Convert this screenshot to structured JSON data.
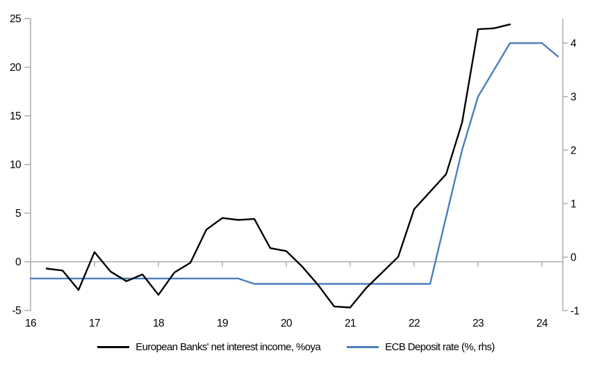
{
  "chart_data": {
    "type": "line",
    "title": "",
    "x_axis": {
      "ticks": [
        16,
        17,
        18,
        19,
        20,
        21,
        22,
        23,
        24
      ],
      "range": [
        16,
        24.33
      ],
      "tick_label_position": "bottom",
      "tick_marks_on_zero_line": true
    },
    "y_axis_left": {
      "ticks": [
        25,
        20,
        15,
        10,
        5,
        0,
        -5
      ],
      "range": [
        -5,
        25
      ]
    },
    "y_axis_right": {
      "ticks": [
        4,
        3,
        2,
        1,
        0,
        -1
      ],
      "range": [
        -1,
        4.45
      ]
    },
    "grid": false,
    "zero_line": true,
    "legend_position": "bottom",
    "axis_color": "#a6a6a6",
    "series": [
      {
        "name": "European Banks' net interest income, %oya",
        "color": "#000000",
        "axis": "left",
        "x": [
          16.25,
          16.5,
          16.75,
          17.0,
          17.25,
          17.5,
          17.75,
          18.0,
          18.25,
          18.5,
          18.75,
          19.0,
          19.25,
          19.5,
          19.75,
          20.0,
          20.25,
          20.5,
          20.75,
          21.0,
          21.25,
          21.5,
          21.75,
          22.0,
          22.25,
          22.5,
          22.75,
          23.0,
          23.25,
          23.5
        ],
        "values": [
          -0.7,
          -0.9,
          -2.9,
          1.0,
          -1.0,
          -2.0,
          -1.3,
          -3.4,
          -1.1,
          -0.1,
          3.3,
          4.5,
          4.3,
          4.4,
          1.4,
          1.1,
          -0.5,
          -2.4,
          -4.6,
          -4.7,
          -2.7,
          -1.1,
          0.5,
          5.4,
          7.2,
          9.0,
          14.3,
          23.9,
          24.0,
          24.4
        ]
      },
      {
        "name": "ECB Deposit rate (%, rhs)",
        "color": "#4a7ebc",
        "axis": "right",
        "x": [
          16.0,
          19.25,
          19.5,
          22.25,
          22.5,
          22.75,
          23.0,
          23.25,
          23.5,
          23.75,
          24.0,
          24.25
        ],
        "values": [
          -0.4,
          -0.4,
          -0.5,
          -0.5,
          0.75,
          2.0,
          3.0,
          3.5,
          4.0,
          4.0,
          4.0,
          3.75
        ]
      }
    ]
  }
}
